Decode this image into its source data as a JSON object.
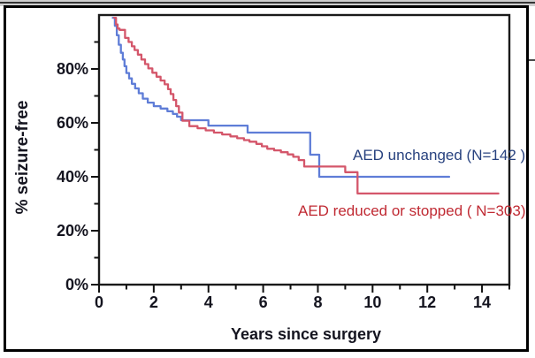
{
  "figure": {
    "kind": "kaplan-meier-survival-plot",
    "background": "#ffffff",
    "border_color": "#000000"
  },
  "chart_data": {
    "type": "line",
    "step": true,
    "title": "",
    "xlabel": "Years since surgery",
    "ylabel": "% seizure-free",
    "xlim": [
      0,
      15
    ],
    "ylim": [
      0,
      100
    ],
    "grid": false,
    "legend_position": "inline",
    "axis_text_color": "#14141f",
    "x_major_ticks": [
      0,
      2,
      4,
      6,
      8,
      10,
      12,
      14
    ],
    "x_minor_ticks": [
      1,
      3,
      5,
      7,
      9,
      11,
      13,
      15
    ],
    "y_major_ticks": [
      0,
      20,
      40,
      60,
      80
    ],
    "y_minor_ticks": [
      10,
      30,
      50,
      70,
      90
    ],
    "x_tick_labels": [
      "0",
      "2",
      "4",
      "6",
      "8",
      "10",
      "12",
      "14"
    ],
    "y_tick_labels": [
      "0%",
      "20%",
      "40%",
      "60%",
      "80%"
    ],
    "series": [
      {
        "id": "aed-unchanged",
        "label": "AED unchanged (N=142 )",
        "n": 142,
        "color": "#5f7dd7",
        "label_color": "#28427f",
        "points": [
          [
            0.5,
            99
          ],
          [
            0.58,
            96
          ],
          [
            0.65,
            92.5
          ],
          [
            0.72,
            89
          ],
          [
            0.8,
            86
          ],
          [
            0.87,
            83.5
          ],
          [
            0.93,
            81
          ],
          [
            1.0,
            78.5
          ],
          [
            1.1,
            76.5
          ],
          [
            1.2,
            74.5
          ],
          [
            1.32,
            72.8
          ],
          [
            1.45,
            71
          ],
          [
            1.6,
            69
          ],
          [
            1.78,
            67.5
          ],
          [
            2.0,
            66.2
          ],
          [
            2.25,
            65.3
          ],
          [
            2.5,
            64.3
          ],
          [
            2.7,
            63.3
          ],
          [
            2.85,
            62.3
          ],
          [
            3.0,
            61
          ],
          [
            4.0,
            59
          ],
          [
            5.43,
            56.4
          ],
          [
            7.72,
            48.2
          ],
          [
            8.05,
            40
          ],
          [
            12.8,
            40
          ]
        ]
      },
      {
        "id": "aed-reduced-or-stopped",
        "label": "AED reduced or stopped ( N=303)",
        "n": 303,
        "color": "#d4566a",
        "label_color": "#c02a33",
        "points": [
          [
            0.55,
            99
          ],
          [
            0.62,
            96.5
          ],
          [
            0.68,
            95
          ],
          [
            0.75,
            94.5
          ],
          [
            0.95,
            91.5
          ],
          [
            1.08,
            90
          ],
          [
            1.2,
            88.4
          ],
          [
            1.3,
            87
          ],
          [
            1.42,
            85.3
          ],
          [
            1.55,
            83.5
          ],
          [
            1.68,
            81.8
          ],
          [
            1.8,
            80.2
          ],
          [
            1.95,
            78.6
          ],
          [
            2.1,
            77.1
          ],
          [
            2.25,
            75.7
          ],
          [
            2.4,
            74.3
          ],
          [
            2.52,
            72.5
          ],
          [
            2.62,
            70.7
          ],
          [
            2.72,
            68.5
          ],
          [
            2.82,
            66.2
          ],
          [
            2.92,
            63.8
          ],
          [
            3.05,
            60.8
          ],
          [
            3.3,
            58.8
          ],
          [
            3.6,
            58
          ],
          [
            3.9,
            57.2
          ],
          [
            4.2,
            56.4
          ],
          [
            4.5,
            55.7
          ],
          [
            4.8,
            55
          ],
          [
            5.05,
            54.3
          ],
          [
            5.3,
            53.6
          ],
          [
            5.5,
            53
          ],
          [
            5.75,
            52.2
          ],
          [
            5.95,
            51.3
          ],
          [
            6.15,
            50.4
          ],
          [
            6.4,
            49.8
          ],
          [
            6.65,
            49.1
          ],
          [
            6.9,
            48.3
          ],
          [
            7.1,
            47.4
          ],
          [
            7.3,
            46.2
          ],
          [
            7.5,
            43.8
          ],
          [
            9.0,
            41.7
          ],
          [
            9.45,
            33.8
          ],
          [
            14.6,
            33.8
          ]
        ]
      }
    ]
  }
}
